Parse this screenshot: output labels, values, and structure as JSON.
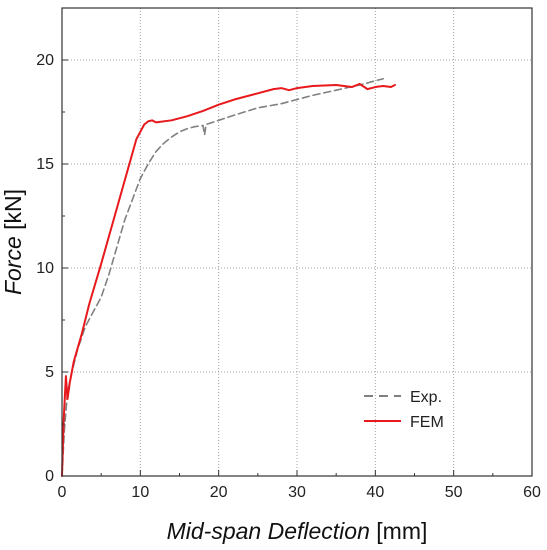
{
  "chart_data": {
    "type": "line",
    "xlabel": {
      "main": "Mid-span Deflection",
      "unit": " [mm]"
    },
    "ylabel": {
      "main": "Force",
      "unit": " [kN]"
    },
    "xlim": [
      0,
      60
    ],
    "ylim": [
      0,
      22.5
    ],
    "xticks": [
      "0",
      "10",
      "20",
      "30",
      "40",
      "50",
      "60"
    ],
    "yticks": [
      "0",
      "5",
      "10",
      "15",
      "20"
    ],
    "grid": "dotted vertical and horizontal lines at each major tick",
    "legend": {
      "placement": "lower-right"
    },
    "series": [
      {
        "name": "Exp.",
        "color": "#808080",
        "dash": "dashed",
        "points": [
          [
            0,
            0
          ],
          [
            0.3,
            2.2
          ],
          [
            0.7,
            4.0
          ],
          [
            1.2,
            4.9
          ],
          [
            2.0,
            6.1
          ],
          [
            3.0,
            7.2
          ],
          [
            4.0,
            7.9
          ],
          [
            5.0,
            8.6
          ],
          [
            6.0,
            9.7
          ],
          [
            7.0,
            11.0
          ],
          [
            8.0,
            12.3
          ],
          [
            9.0,
            13.3
          ],
          [
            10.0,
            14.3
          ],
          [
            11.0,
            15.0
          ],
          [
            12.0,
            15.6
          ],
          [
            13.0,
            16.0
          ],
          [
            14.0,
            16.3
          ],
          [
            15.0,
            16.55
          ],
          [
            16.0,
            16.7
          ],
          [
            17.0,
            16.8
          ],
          [
            18.0,
            16.85
          ],
          [
            18.2,
            16.4
          ],
          [
            18.4,
            16.9
          ],
          [
            20.0,
            17.1
          ],
          [
            22.0,
            17.35
          ],
          [
            25.0,
            17.7
          ],
          [
            28.0,
            17.9
          ],
          [
            30.0,
            18.1
          ],
          [
            32.0,
            18.3
          ],
          [
            35.0,
            18.55
          ],
          [
            38.0,
            18.8
          ],
          [
            41.0,
            19.1
          ]
        ]
      },
      {
        "name": "FEM",
        "color": "#e8191c",
        "dash": "solid",
        "points": [
          [
            0,
            0
          ],
          [
            0.2,
            2.6
          ],
          [
            0.5,
            4.8
          ],
          [
            0.7,
            3.7
          ],
          [
            1.0,
            4.5
          ],
          [
            1.5,
            5.5
          ],
          [
            2.5,
            6.8
          ],
          [
            3.5,
            8.3
          ],
          [
            5.0,
            10.2
          ],
          [
            6.5,
            12.2
          ],
          [
            8.0,
            14.2
          ],
          [
            9.5,
            16.2
          ],
          [
            10.5,
            16.9
          ],
          [
            11.0,
            17.05
          ],
          [
            11.5,
            17.1
          ],
          [
            12.0,
            17.0
          ],
          [
            14.0,
            17.1
          ],
          [
            16.0,
            17.3
          ],
          [
            18.0,
            17.55
          ],
          [
            20.0,
            17.85
          ],
          [
            22.0,
            18.1
          ],
          [
            25.0,
            18.4
          ],
          [
            27.0,
            18.6
          ],
          [
            28.0,
            18.65
          ],
          [
            29.0,
            18.55
          ],
          [
            30.0,
            18.65
          ],
          [
            32.0,
            18.75
          ],
          [
            35.0,
            18.8
          ],
          [
            37.0,
            18.7
          ],
          [
            38.0,
            18.85
          ],
          [
            39.0,
            18.6
          ],
          [
            40.0,
            18.7
          ],
          [
            41.0,
            18.75
          ],
          [
            42.0,
            18.7
          ],
          [
            42.5,
            18.8
          ]
        ]
      }
    ]
  }
}
